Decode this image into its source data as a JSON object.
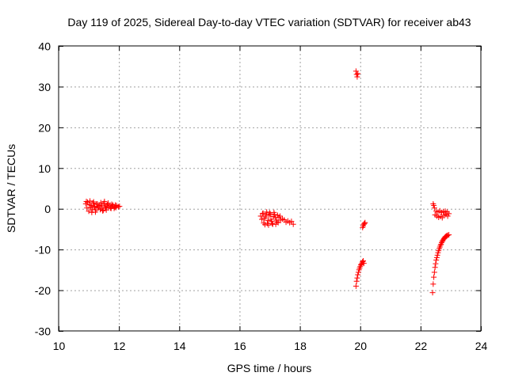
{
  "chart_data": {
    "type": "scatter",
    "title": "Day 119 of 2025, Sidereal Day-to-day VTEC variation (SDTVAR) for receiver ab43",
    "xlabel": "GPS time / hours",
    "ylabel": "SDTVAR / TECUs",
    "xlim": [
      10,
      24
    ],
    "ylim": [
      -30,
      40
    ],
    "xticks": [
      10,
      12,
      14,
      16,
      18,
      20,
      22,
      24
    ],
    "yticks": [
      -30,
      -20,
      -10,
      0,
      10,
      20,
      30,
      40
    ],
    "xtick_labels": [
      "10",
      "12",
      "14",
      "16",
      "18",
      "20",
      "22",
      "24"
    ],
    "ytick_labels": [
      "-30",
      "-20",
      "-10",
      "0",
      "10",
      "20",
      "30",
      "40"
    ],
    "grid": true,
    "marker": "plus",
    "marker_color": "#ff0000",
    "series": [
      {
        "name": "SDTVAR",
        "x": [
          10.9,
          10.96,
          11.02,
          11.08,
          11.14,
          11.2,
          11.26,
          11.32,
          11.38,
          11.44,
          11.5,
          11.56,
          11.62,
          11.68,
          11.74,
          11.8,
          11.86,
          11.92,
          11.98,
          12.02,
          10.94,
          11.0,
          11.06,
          11.12,
          11.18,
          11.24,
          11.3,
          11.36,
          11.42,
          11.48,
          11.54,
          11.6,
          11.66,
          11.72,
          11.78,
          11.84,
          11.9,
          10.92,
          11.04,
          11.16,
          11.28,
          11.4,
          11.52,
          11.64,
          11.76,
          11.88,
          11.1,
          11.22,
          11.46,
          11.58,
          16.7,
          16.76,
          16.82,
          16.88,
          16.94,
          17.0,
          17.06,
          17.12,
          17.18,
          17.24,
          17.3,
          17.36,
          17.42,
          17.48,
          17.54,
          17.6,
          17.66,
          17.72,
          17.78,
          16.74,
          16.8,
          16.86,
          16.92,
          16.98,
          17.04,
          17.1,
          17.16,
          17.22,
          17.28,
          17.34,
          16.78,
          16.9,
          17.02,
          17.14,
          17.26,
          16.84,
          16.96,
          17.08,
          17.2,
          19.86,
          19.88,
          19.9,
          19.92,
          19.86,
          19.88,
          19.9,
          19.92,
          19.94,
          19.96,
          19.98,
          20.0,
          20.02,
          20.04,
          20.06,
          20.08,
          20.1,
          20.12,
          20.08,
          20.1,
          20.12,
          20.14,
          20.16,
          22.4,
          22.42,
          22.44,
          22.46,
          22.48,
          22.5,
          22.52,
          22.54,
          22.56,
          22.58,
          22.6,
          22.62,
          22.64,
          22.66,
          22.68,
          22.7,
          22.72,
          22.74,
          22.76,
          22.78,
          22.8,
          22.82,
          22.84,
          22.86,
          22.88,
          22.9,
          22.94,
          22.48,
          22.54,
          22.6,
          22.66,
          22.72,
          22.78,
          22.84,
          22.9,
          22.52,
          22.58,
          22.64,
          22.7,
          22.76,
          22.82,
          22.88,
          22.94,
          22.42,
          22.44,
          22.46
        ],
        "y": [
          1.2,
          1.6,
          1.0,
          0.8,
          1.4,
          0.4,
          1.1,
          0.6,
          -0.2,
          0.9,
          1.3,
          0.2,
          1.0,
          0.7,
          0.1,
          0.9,
          0.4,
          0.8,
          0.5,
          0.6,
          0.2,
          -0.6,
          0.3,
          -0.1,
          0.6,
          -0.3,
          0.2,
          0.8,
          0.1,
          -0.4,
          0.5,
          0.7,
          0.3,
          0.2,
          0.6,
          0.1,
          0.3,
          1.8,
          1.9,
          1.7,
          1.2,
          1.5,
          1.8,
          1.4,
          1.1,
          0.9,
          -0.9,
          -0.8,
          -0.5,
          -0.3,
          -1.8,
          -1.2,
          -2.4,
          -1.5,
          -2.9,
          -1.0,
          -3.1,
          -1.9,
          -2.2,
          -3.2,
          -2.1,
          -2.8,
          -2.5,
          -2.7,
          -3.3,
          -3.0,
          -3.4,
          -3.1,
          -3.8,
          -2.6,
          -3.5,
          -2.0,
          -3.6,
          -1.6,
          -2.6,
          -3.8,
          -1.4,
          -2.8,
          -3.4,
          -1.8,
          -1.1,
          -0.8,
          -1.3,
          -0.9,
          -1.6,
          -3.9,
          -4.0,
          -3.6,
          -3.8,
          33.8,
          33.0,
          32.4,
          33.2,
          -19.0,
          -17.8,
          -17.0,
          -16.2,
          -15.6,
          -15.0,
          -14.6,
          -14.2,
          -13.8,
          -13.6,
          -13.3,
          -13.0,
          -12.8,
          -13.4,
          -4.6,
          -4.2,
          -3.8,
          -3.6,
          -3.4,
          -20.6,
          -18.5,
          -16.8,
          -15.6,
          -14.4,
          -13.5,
          -12.6,
          -12.0,
          -11.4,
          -10.8,
          -10.3,
          -9.8,
          -9.4,
          -9.0,
          -8.7,
          -8.3,
          -8.0,
          -7.8,
          -7.5,
          -7.3,
          -7.1,
          -6.9,
          -6.8,
          -6.7,
          -6.6,
          -6.5,
          -6.4,
          -1.5,
          -1.8,
          -2.1,
          -1.9,
          -2.2,
          -1.6,
          -1.4,
          -1.8,
          -0.6,
          -0.8,
          -0.5,
          -0.9,
          -0.7,
          -0.6,
          -0.8,
          -1.2,
          1.2,
          0.8,
          0.2
        ]
      }
    ]
  }
}
